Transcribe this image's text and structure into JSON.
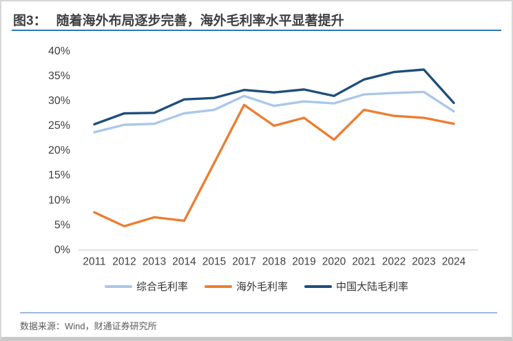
{
  "header": {
    "fig_label": "图3：",
    "title": "随着海外布局逐步完善，海外毛利率水平显著提升"
  },
  "footer": {
    "source": "数据来源：Wind，财通证券研究所"
  },
  "colors": {
    "title_underline": "#2e75b6",
    "footer_rule": "#9db9dc",
    "axis_line": "#d9d9d9",
    "tick_text": "#3f3f3f"
  },
  "chart_data": {
    "type": "line",
    "title": "",
    "xlabel": "",
    "ylabel": "",
    "ylim": [
      0,
      40
    ],
    "grid": false,
    "legend_position": "bottom",
    "y_ticks": [
      "0%",
      "5%",
      "10%",
      "15%",
      "20%",
      "25%",
      "30%",
      "35%",
      "40%"
    ],
    "categories": [
      "2011",
      "2012",
      "2013",
      "2014",
      "2015",
      "2017",
      "2018",
      "2019",
      "2020",
      "2021",
      "2022",
      "2023",
      "2024"
    ],
    "series": [
      {
        "name": "综合毛利率",
        "color": "#aac7e8",
        "values": [
          23.7,
          25.2,
          25.4,
          27.5,
          28.2,
          31.0,
          29.0,
          29.9,
          29.5,
          31.3,
          31.6,
          31.8,
          27.9
        ]
      },
      {
        "name": "海外毛利率",
        "color": "#ed7d31",
        "values": [
          7.6,
          4.8,
          6.6,
          5.9,
          17.5,
          29.2,
          25.0,
          26.6,
          22.2,
          28.2,
          27.0,
          26.6,
          25.4
        ]
      },
      {
        "name": "中国大陆毛利率",
        "color": "#1f4e7b",
        "values": [
          25.3,
          27.5,
          27.6,
          30.3,
          30.6,
          32.2,
          31.7,
          32.3,
          31.0,
          34.3,
          35.8,
          36.3,
          29.6
        ]
      }
    ]
  }
}
